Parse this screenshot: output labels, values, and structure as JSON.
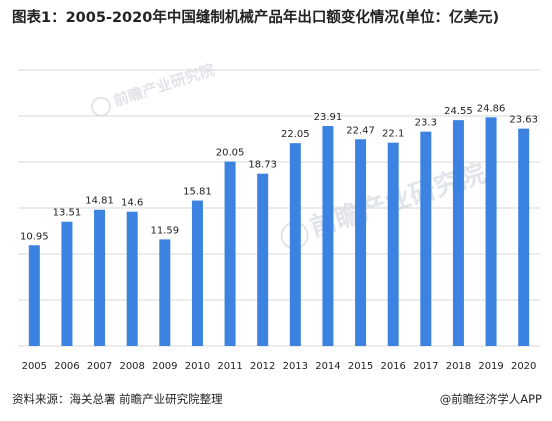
{
  "title": "图表1：2005-2020年中国缝制机械产品年出口额变化情况(单位：亿美元)",
  "watermark_text": "前瞻产业研究院",
  "footer": {
    "source": "资料来源：海关总署 前瞻产业研究院整理",
    "brand": "@前瞻经济学人APP"
  },
  "colors": {
    "bar": "#3c82e0",
    "grid": "#d9d9d9",
    "text": "#222222"
  },
  "chart_data": {
    "type": "bar",
    "categories": [
      "2005",
      "2006",
      "2007",
      "2008",
      "2009",
      "2010",
      "2011",
      "2012",
      "2013",
      "2014",
      "2015",
      "2016",
      "2017",
      "2018",
      "2019",
      "2020"
    ],
    "values": [
      10.95,
      13.51,
      14.81,
      14.6,
      11.59,
      15.81,
      20.05,
      18.73,
      22.05,
      23.91,
      22.47,
      22.1,
      23.3,
      24.55,
      24.86,
      23.63
    ],
    "ylim": [
      0,
      30
    ],
    "grid": true,
    "data_labels": true
  }
}
